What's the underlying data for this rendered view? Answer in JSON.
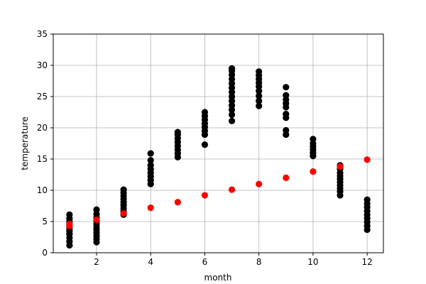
{
  "chart_data": {
    "type": "scatter",
    "title": "",
    "xlabel": "month",
    "ylabel": "temperature",
    "xlim": [
      0.4,
      12.6
    ],
    "ylim": [
      0,
      35
    ],
    "x_ticks": [
      2,
      4,
      6,
      8,
      10,
      12
    ],
    "y_ticks": [
      0,
      5,
      10,
      15,
      20,
      25,
      30,
      35
    ],
    "grid": true,
    "legend": "none",
    "colors": {
      "observed": "#000000",
      "fitted": "#ff0000",
      "grid": "#b0b0b0",
      "axes": "#000000"
    },
    "series": [
      {
        "color": "#000000",
        "points": [
          [
            1,
            1.2
          ],
          [
            1,
            1.8
          ],
          [
            1,
            2.4
          ],
          [
            1,
            3.0
          ],
          [
            1,
            3.4
          ],
          [
            1,
            3.8
          ],
          [
            1,
            4.2
          ],
          [
            1,
            4.6
          ],
          [
            1,
            5.0
          ],
          [
            1,
            5.5
          ],
          [
            1,
            6.1
          ],
          [
            2,
            1.7
          ],
          [
            2,
            2.2
          ],
          [
            2,
            2.7
          ],
          [
            2,
            3.2
          ],
          [
            2,
            3.7
          ],
          [
            2,
            4.1
          ],
          [
            2,
            4.6
          ],
          [
            2,
            5.1
          ],
          [
            2,
            5.6
          ],
          [
            2,
            6.2
          ],
          [
            2,
            6.9
          ],
          [
            3,
            6.1
          ],
          [
            3,
            6.6
          ],
          [
            3,
            7.1
          ],
          [
            3,
            7.6
          ],
          [
            3,
            8.1
          ],
          [
            3,
            8.6
          ],
          [
            3,
            9.1
          ],
          [
            3,
            9.6
          ],
          [
            3,
            10.1
          ],
          [
            4,
            11.0
          ],
          [
            4,
            11.6
          ],
          [
            4,
            12.2
          ],
          [
            4,
            12.8
          ],
          [
            4,
            13.4
          ],
          [
            4,
            14.0
          ],
          [
            4,
            14.8
          ],
          [
            4,
            15.9
          ],
          [
            5,
            15.3
          ],
          [
            5,
            15.9
          ],
          [
            5,
            16.5
          ],
          [
            5,
            17.1
          ],
          [
            5,
            17.7
          ],
          [
            5,
            18.3
          ],
          [
            5,
            18.9
          ],
          [
            5,
            19.3
          ],
          [
            6,
            17.3
          ],
          [
            6,
            18.9
          ],
          [
            6,
            19.5
          ],
          [
            6,
            20.1
          ],
          [
            6,
            20.7
          ],
          [
            6,
            21.3
          ],
          [
            6,
            21.9
          ],
          [
            6,
            22.5
          ],
          [
            7,
            21.1
          ],
          [
            7,
            22.1
          ],
          [
            7,
            22.9
          ],
          [
            7,
            23.6
          ],
          [
            7,
            24.3
          ],
          [
            7,
            25.0
          ],
          [
            7,
            25.7
          ],
          [
            7,
            26.4
          ],
          [
            7,
            27.1
          ],
          [
            7,
            27.8
          ],
          [
            7,
            28.5
          ],
          [
            7,
            29.1
          ],
          [
            7,
            29.5
          ],
          [
            8,
            23.5
          ],
          [
            8,
            24.3
          ],
          [
            8,
            25.1
          ],
          [
            8,
            25.9
          ],
          [
            8,
            26.6
          ],
          [
            8,
            27.2
          ],
          [
            8,
            27.8
          ],
          [
            8,
            28.4
          ],
          [
            8,
            29.0
          ],
          [
            9,
            18.9
          ],
          [
            9,
            19.6
          ],
          [
            9,
            21.6
          ],
          [
            9,
            22.2
          ],
          [
            9,
            23.3
          ],
          [
            9,
            23.9
          ],
          [
            9,
            24.5
          ],
          [
            9,
            25.2
          ],
          [
            9,
            26.5
          ],
          [
            10,
            15.5
          ],
          [
            10,
            16.0
          ],
          [
            10,
            16.5
          ],
          [
            10,
            17.0
          ],
          [
            10,
            17.5
          ],
          [
            10,
            18.2
          ],
          [
            11,
            9.2
          ],
          [
            11,
            9.8
          ],
          [
            11,
            10.3
          ],
          [
            11,
            10.8
          ],
          [
            11,
            11.3
          ],
          [
            11,
            11.8
          ],
          [
            11,
            12.3
          ],
          [
            11,
            12.8
          ],
          [
            11,
            13.4
          ],
          [
            11,
            14.0
          ],
          [
            12,
            3.7
          ],
          [
            12,
            4.3
          ],
          [
            12,
            4.9
          ],
          [
            12,
            5.5
          ],
          [
            12,
            6.1
          ],
          [
            12,
            6.7
          ],
          [
            12,
            7.3
          ],
          [
            12,
            7.9
          ],
          [
            12,
            8.5
          ]
        ]
      },
      {
        "color": "#ff0000",
        "points": [
          [
            1,
            4.3
          ],
          [
            1,
            4.6
          ],
          [
            2,
            5.3
          ],
          [
            3,
            6.3
          ],
          [
            4,
            7.2
          ],
          [
            5,
            8.1
          ],
          [
            6,
            9.2
          ],
          [
            7,
            10.1
          ],
          [
            8,
            11.0
          ],
          [
            9,
            12.0
          ],
          [
            10,
            13.0
          ],
          [
            11,
            13.8
          ],
          [
            12,
            14.9
          ]
        ]
      }
    ]
  }
}
